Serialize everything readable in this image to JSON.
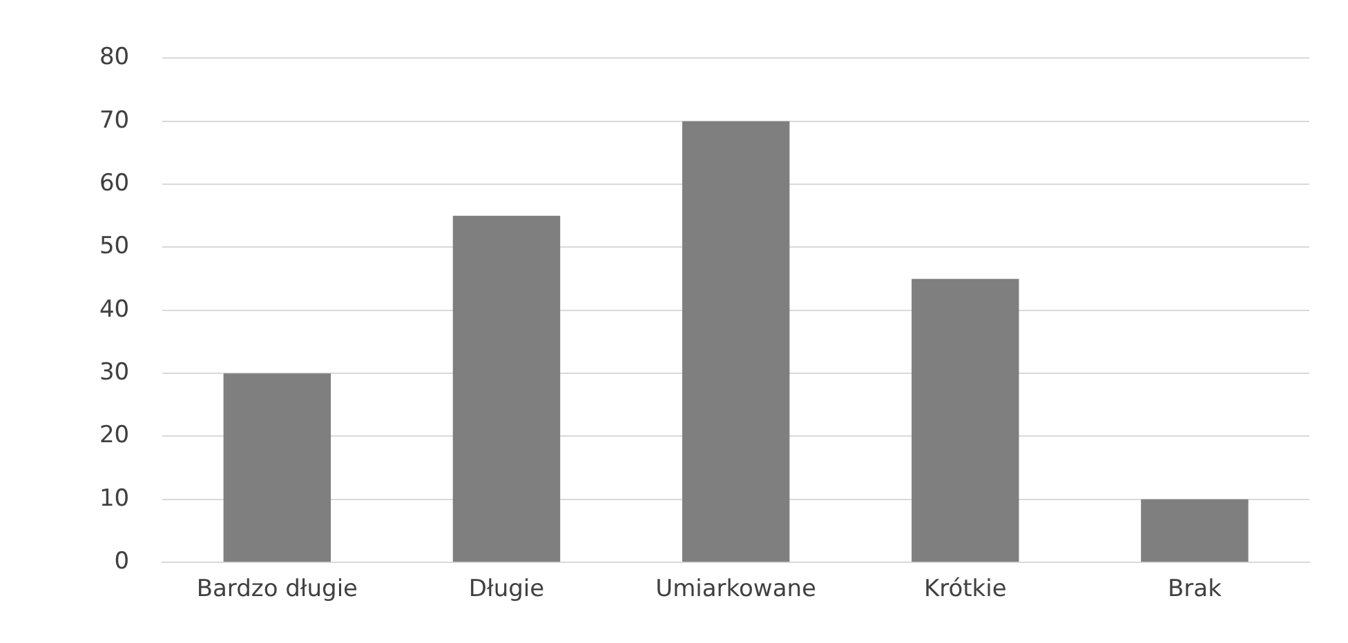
{
  "chart_data": {
    "type": "bar",
    "categories": [
      "Bardzo długie",
      "Długie",
      "Umiarkowane",
      "Krótkie",
      "Brak"
    ],
    "values": [
      30,
      55,
      70,
      45,
      10
    ],
    "color": "#7f7f7f",
    "ylim": [
      0,
      80
    ],
    "yticks": [
      0,
      10,
      20,
      30,
      40,
      50,
      60,
      70,
      80
    ],
    "grid": "y"
  }
}
